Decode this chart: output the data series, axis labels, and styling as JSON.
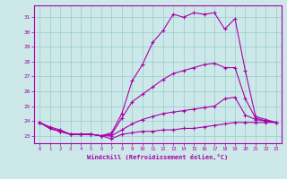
{
  "bg_color": "#cce8e8",
  "grid_color": "#99cccc",
  "line_color": "#aa00aa",
  "marker": "+",
  "xlabel": "Windchill (Refroidissement éolien,°C)",
  "xlim": [
    -0.5,
    23.5
  ],
  "ylim": [
    22.5,
    31.8
  ],
  "xticks": [
    0,
    1,
    2,
    3,
    4,
    5,
    6,
    7,
    8,
    9,
    10,
    11,
    12,
    13,
    14,
    15,
    16,
    17,
    18,
    19,
    20,
    21,
    22,
    23
  ],
  "yticks": [
    23,
    24,
    25,
    26,
    27,
    28,
    29,
    30,
    31
  ],
  "curve1_x": [
    0,
    1,
    2,
    3,
    4,
    5,
    6,
    7,
    8,
    9,
    10,
    11,
    12,
    13,
    14,
    15,
    16,
    17,
    18,
    19,
    20,
    21,
    22,
    23
  ],
  "curve1_y": [
    23.9,
    23.6,
    23.4,
    23.1,
    23.1,
    23.1,
    23.0,
    22.8,
    23.1,
    23.2,
    23.3,
    23.3,
    23.4,
    23.4,
    23.5,
    23.5,
    23.6,
    23.7,
    23.8,
    23.9,
    23.9,
    23.9,
    23.9,
    23.9
  ],
  "curve2_x": [
    0,
    1,
    2,
    3,
    4,
    5,
    6,
    7,
    8,
    9,
    10,
    11,
    12,
    13,
    14,
    15,
    16,
    17,
    18,
    19,
    20,
    21,
    22,
    23
  ],
  "curve2_y": [
    23.9,
    23.5,
    23.3,
    23.1,
    23.1,
    23.1,
    23.0,
    23.0,
    23.4,
    23.8,
    24.1,
    24.3,
    24.5,
    24.6,
    24.7,
    24.8,
    24.9,
    25.0,
    25.5,
    25.6,
    24.4,
    24.1,
    24.0,
    23.9
  ],
  "curve3_x": [
    0,
    1,
    2,
    3,
    4,
    5,
    6,
    7,
    8,
    9,
    10,
    11,
    12,
    13,
    14,
    15,
    16,
    17,
    18,
    19,
    20,
    21,
    22,
    23
  ],
  "curve3_y": [
    23.9,
    23.5,
    23.3,
    23.1,
    23.1,
    23.1,
    23.0,
    23.1,
    24.2,
    25.3,
    25.8,
    26.3,
    26.8,
    27.2,
    27.4,
    27.6,
    27.8,
    27.9,
    27.6,
    27.6,
    25.5,
    24.2,
    24.0,
    23.9
  ],
  "curve4_x": [
    0,
    1,
    2,
    3,
    4,
    5,
    6,
    7,
    8,
    9,
    10,
    11,
    12,
    13,
    14,
    15,
    16,
    17,
    18,
    19,
    20,
    21,
    22,
    23
  ],
  "curve4_y": [
    23.9,
    23.5,
    23.3,
    23.1,
    23.1,
    23.1,
    23.0,
    23.2,
    24.5,
    26.7,
    27.8,
    29.3,
    30.1,
    31.2,
    31.0,
    31.3,
    31.2,
    31.3,
    30.2,
    30.9,
    27.4,
    24.3,
    24.1,
    23.9
  ]
}
